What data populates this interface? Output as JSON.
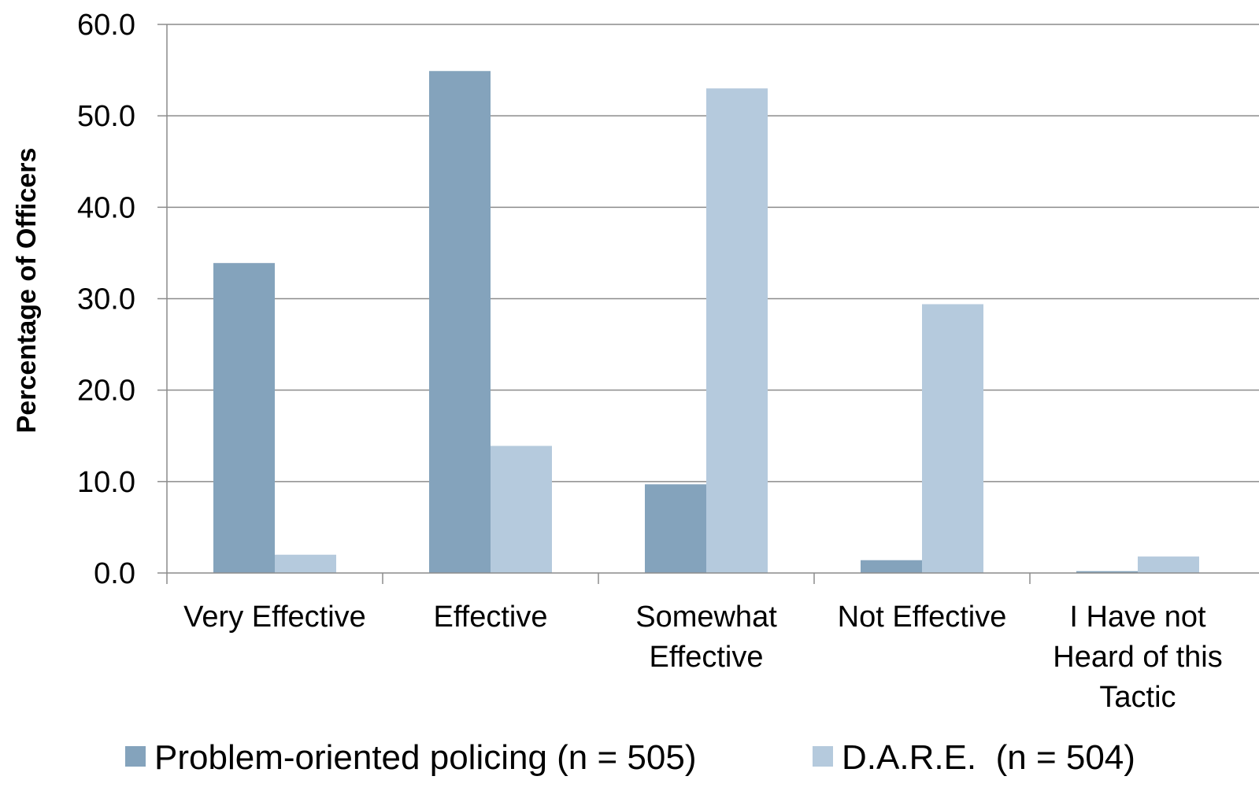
{
  "chart_data": {
    "type": "bar",
    "title": "",
    "xlabel": "",
    "ylabel": "Percentage of Officers",
    "ylim": [
      0,
      60
    ],
    "yticks": [
      "0.0",
      "10.0",
      "20.0",
      "30.0",
      "40.0",
      "50.0",
      "60.0"
    ],
    "grid": "horizontal",
    "legend_position": "bottom",
    "categories": [
      [
        "Very Effective"
      ],
      [
        "Effective"
      ],
      [
        "Somewhat",
        "Effective"
      ],
      [
        "Not Effective"
      ],
      [
        "I Have not",
        "Heard of this",
        "Tactic"
      ]
    ],
    "series": [
      {
        "name": "Problem-oriented policing (n = 505)",
        "color": "#84a3bc",
        "values": [
          33.9,
          54.9,
          9.7,
          1.4,
          0.2
        ]
      },
      {
        "name": "D.A.R.E.  (n = 504)",
        "color": "#b5cadd",
        "values": [
          2.0,
          13.9,
          53.0,
          29.4,
          1.8
        ]
      }
    ]
  }
}
